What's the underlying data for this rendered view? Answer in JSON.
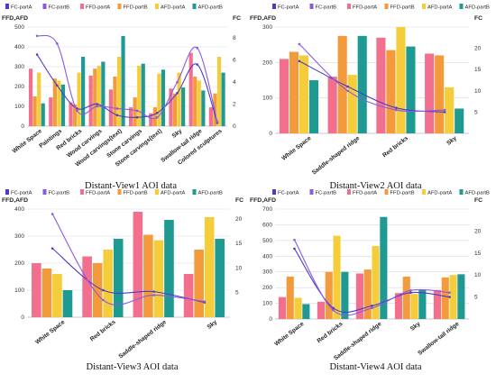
{
  "legend": [
    {
      "label": "FC-partA",
      "color": "#4b3cc8"
    },
    {
      "label": "FC-partB",
      "color": "#8a5ae0"
    },
    {
      "label": "FFD-partA",
      "color": "#f2708e"
    },
    {
      "label": "FFD-partB",
      "color": "#f29a3c"
    },
    {
      "label": "AFD-partA",
      "color": "#f5cd3a"
    },
    {
      "label": "AFD-partB",
      "color": "#1f9a93"
    }
  ],
  "chart_data": [
    {
      "type": "bar",
      "title": "Distant-View1 AOI data",
      "ylabel_left": "FFD,AFD",
      "ylabel_right": "FC",
      "ylim_left": [
        0,
        500
      ],
      "ylim_right": [
        0,
        9
      ],
      "yticks_left": [
        0,
        100,
        200,
        300,
        400,
        500
      ],
      "yticks_right": [
        0,
        2,
        4,
        6,
        8
      ],
      "categories": [
        "White Space",
        "Paintings",
        "Red bricks",
        "Wood carvings",
        "Wood carvings(text)",
        "Stone carvings",
        "Stone carvings(text)",
        "Sky",
        "Swallow-tail ridge",
        "Colored sculptures"
      ],
      "series": [
        {
          "name": "FFD-partA",
          "values": [
            290,
            145,
            120,
            255,
            185,
            95,
            65,
            190,
            370,
            95
          ]
        },
        {
          "name": "FFD-partB",
          "values": [
            150,
            240,
            110,
            290,
            250,
            145,
            95,
            165,
            250,
            165
          ]
        },
        {
          "name": "AFD-partA",
          "values": [
            270,
            230,
            270,
            305,
            350,
            305,
            265,
            270,
            230,
            350
          ]
        },
        {
          "name": "AFD-partB",
          "values": [
            115,
            210,
            350,
            325,
            455,
            315,
            285,
            195,
            180,
            270
          ]
        },
        {
          "name": "FC-partA",
          "values": [
            6.5,
            3.7,
            1.6,
            2.0,
            1.0,
            0.8,
            1.2,
            3.0,
            5.6,
            0.3
          ]
        },
        {
          "name": "FC-partB",
          "values": [
            8.2,
            7.5,
            1.4,
            1.8,
            1.6,
            1.4,
            0.8,
            4.0,
            7.1,
            0.4
          ]
        }
      ]
    },
    {
      "type": "bar",
      "title": "Distant-View2 AOI data",
      "ylabel_left": "FFD,AFD",
      "ylabel_right": "FC",
      "ylim_left": [
        0,
        300
      ],
      "ylim_right": [
        0,
        25
      ],
      "yticks_left": [
        0,
        100,
        200,
        300
      ],
      "yticks_right": [
        5,
        10,
        15,
        20
      ],
      "categories": [
        "White Space",
        "Saddle-shaped ridge",
        "Red bricks",
        "Sky"
      ],
      "series": [
        {
          "name": "FFD-partA",
          "values": [
            210,
            160,
            270,
            225
          ]
        },
        {
          "name": "FFD-partB",
          "values": [
            230,
            275,
            235,
            220
          ]
        },
        {
          "name": "AFD-partA",
          "values": [
            220,
            165,
            300,
            130
          ]
        },
        {
          "name": "AFD-partB",
          "values": [
            150,
            275,
            245,
            70
          ]
        },
        {
          "name": "FC-partA",
          "values": [
            17.0,
            11.0,
            6.0,
            5.0
          ]
        },
        {
          "name": "FC-partB",
          "values": [
            21.0,
            10.0,
            5.5,
            5.5
          ]
        }
      ]
    },
    {
      "type": "bar",
      "title": "Distant-View3 AOI data",
      "ylabel_left": "FFD,AFD",
      "ylabel_right": "FC",
      "ylim_left": [
        0,
        400
      ],
      "ylim_right": [
        0,
        22
      ],
      "yticks_left": [
        0,
        100,
        200,
        300,
        400
      ],
      "yticks_right": [
        5,
        10,
        15,
        20
      ],
      "categories": [
        "White Space",
        "Red bricks",
        "Saddle-shaped ridge",
        "Sky"
      ],
      "series": [
        {
          "name": "FFD-partA",
          "values": [
            200,
            225,
            390,
            160
          ]
        },
        {
          "name": "FFD-partB",
          "values": [
            180,
            200,
            305,
            250
          ]
        },
        {
          "name": "AFD-partA",
          "values": [
            160,
            250,
            285,
            370
          ]
        },
        {
          "name": "AFD-partB",
          "values": [
            100,
            290,
            360,
            290
          ]
        },
        {
          "name": "FC-partA",
          "values": [
            14.0,
            5.5,
            5.2,
            3.0
          ]
        },
        {
          "name": "FC-partB",
          "values": [
            21.0,
            3.5,
            4.5,
            3.2
          ]
        }
      ]
    },
    {
      "type": "bar",
      "title": "Distant-View4 AOI data",
      "ylabel_left": "FFD,AFD",
      "ylabel_right": "FC",
      "ylim_left": [
        0,
        700
      ],
      "ylim_right": [
        0,
        25
      ],
      "yticks_left": [
        0,
        100,
        200,
        300,
        400,
        500,
        600,
        700
      ],
      "yticks_right": [
        5,
        10,
        15,
        20
      ],
      "categories": [
        "White Space",
        "Red bricks",
        "Saddle-shaped ridge",
        "Sky",
        "Swallow-tail ridge"
      ],
      "series": [
        {
          "name": "FFD-partA",
          "values": [
            140,
            110,
            290,
            165,
            185
          ]
        },
        {
          "name": "FFD-partB",
          "values": [
            270,
            300,
            315,
            270,
            265
          ]
        },
        {
          "name": "AFD-partA",
          "values": [
            135,
            530,
            465,
            160,
            280
          ]
        },
        {
          "name": "AFD-partB",
          "values": [
            95,
            300,
            650,
            185,
            285
          ]
        },
        {
          "name": "FC-partA",
          "values": [
            16.0,
            2.5,
            3.0,
            6.0,
            5.0
          ]
        },
        {
          "name": "FC-partB",
          "values": [
            18.0,
            2.0,
            2.5,
            6.5,
            6.0
          ]
        }
      ]
    }
  ]
}
